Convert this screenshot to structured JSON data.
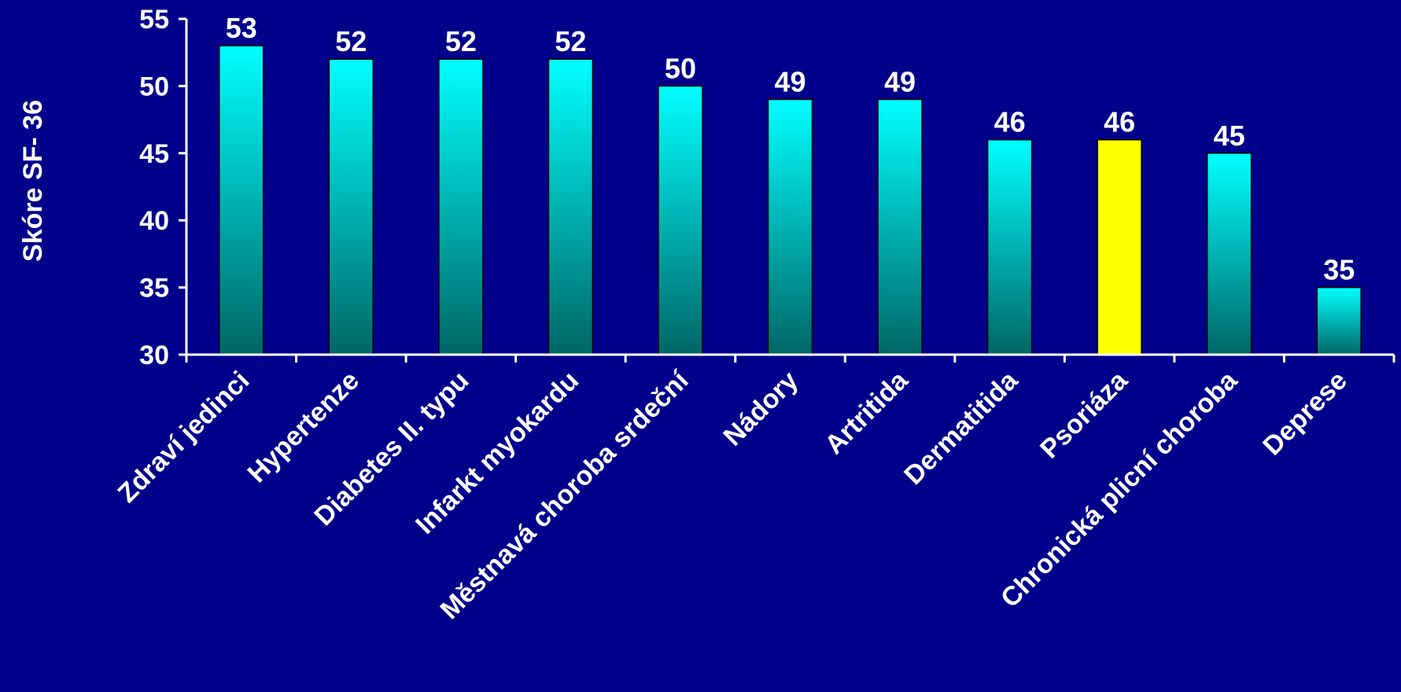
{
  "colors": {
    "background": "#00008b",
    "text": "#ffffff",
    "axis": "#ffffff",
    "bar_top": "#00ffff",
    "bar_bottom": "#006666",
    "highlight": "#ffff00",
    "bar_outline": "#000000"
  },
  "chart_data": {
    "type": "bar",
    "title": "",
    "xlabel": "",
    "ylabel": "Skóre SF- 36",
    "ylim": [
      30,
      55
    ],
    "yticks": [
      30,
      35,
      40,
      45,
      50,
      55
    ],
    "grid": false,
    "legend": "none",
    "highlight_category": "Psoriáza",
    "categories": [
      "Zdraví jedinci",
      "Hypertenze",
      "Diabetes II. typu",
      "Infarkt myokardu",
      "Městnavá choroba srdeční",
      "Nádory",
      "Artritida",
      "Dermatitida",
      "Psoriáza",
      "Chronická plicní choroba",
      "Deprese"
    ],
    "values": [
      53,
      52,
      52,
      52,
      50,
      49,
      49,
      46,
      46,
      45,
      35
    ],
    "value_labels": [
      "53",
      "52",
      "52",
      "52",
      "50",
      "49",
      "49",
      "46",
      "46",
      "45",
      "35"
    ],
    "tick_labels": [
      "30",
      "35",
      "40",
      "45",
      "50",
      "55"
    ]
  }
}
